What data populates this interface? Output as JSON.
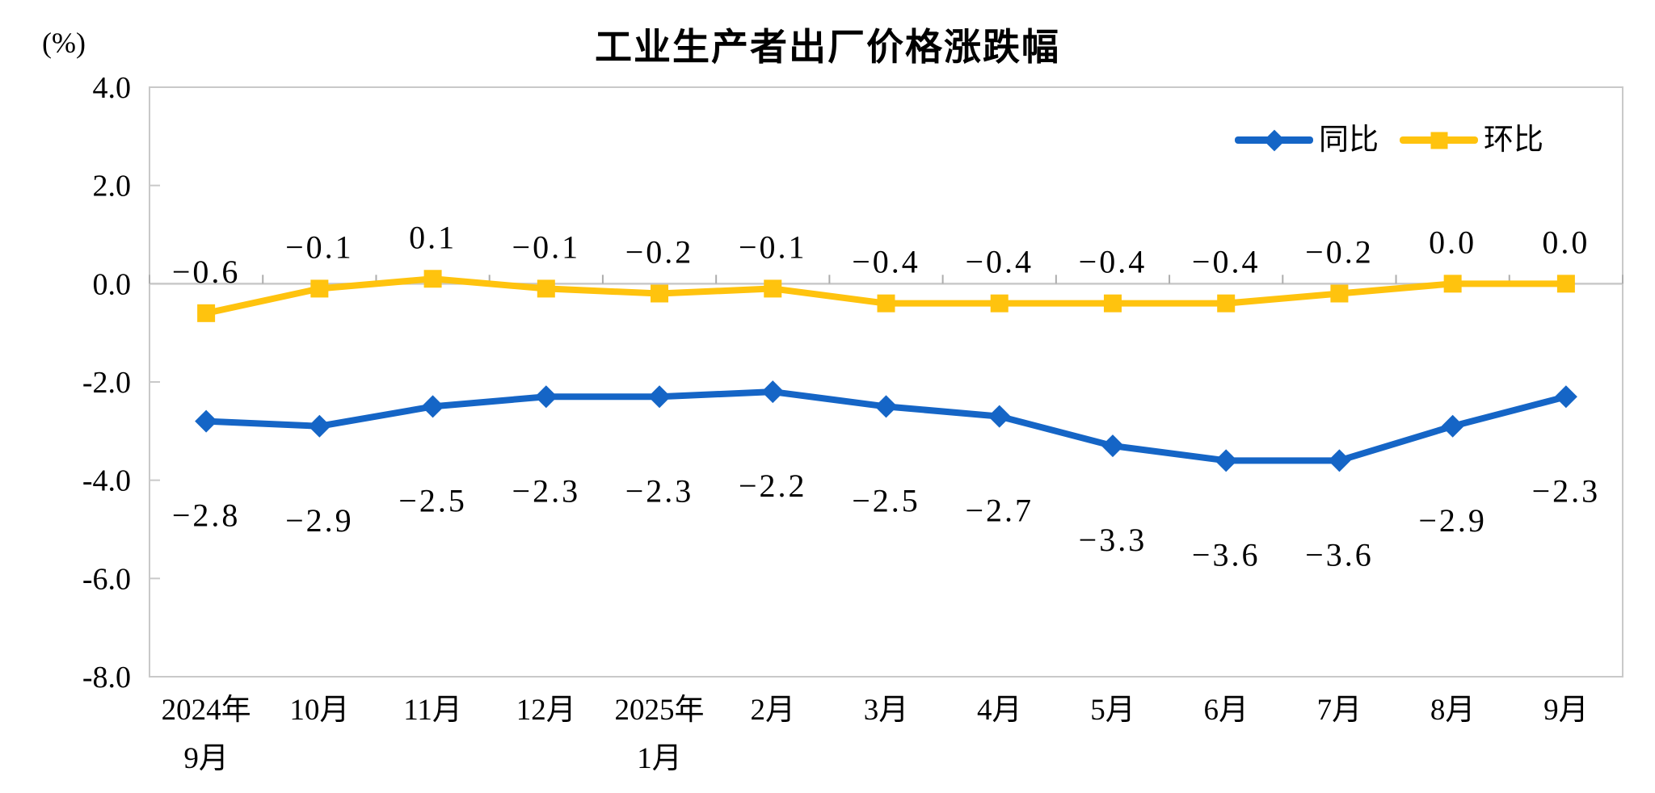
{
  "title": "工业生产者出厂价格涨跌幅",
  "unit_label": "(%)",
  "legend": {
    "items": [
      {
        "key": "yoy",
        "label": "同比",
        "marker": "diamond",
        "color": "#1565C6"
      },
      {
        "key": "mom",
        "label": "环比",
        "marker": "square",
        "color": "#FFC30E"
      }
    ]
  },
  "chart_data": {
    "type": "line",
    "title": "工业生产者出厂价格涨跌幅",
    "ylabel": "(%)",
    "categories": [
      [
        "2024年",
        "9月"
      ],
      [
        "10月"
      ],
      [
        "11月"
      ],
      [
        "12月"
      ],
      [
        "2025年",
        "1月"
      ],
      [
        "2月"
      ],
      [
        "3月"
      ],
      [
        "4月"
      ],
      [
        "5月"
      ],
      [
        "6月"
      ],
      [
        "7月"
      ],
      [
        "8月"
      ],
      [
        "9月"
      ]
    ],
    "series": [
      {
        "key": "yoy",
        "name": "同比",
        "color": "#1565C6",
        "marker": "diamond",
        "label_position": "below",
        "values": [
          -2.8,
          -2.9,
          -2.5,
          -2.3,
          -2.3,
          -2.2,
          -2.5,
          -2.7,
          -3.3,
          -3.6,
          -3.6,
          -2.9,
          -2.3
        ],
        "labels": [
          "−2.8",
          "−2.9",
          "−2.5",
          "−2.3",
          "−2.3",
          "−2.2",
          "−2.5",
          "−2.7",
          "−3.3",
          "−3.6",
          "−3.6",
          "−2.9",
          "−2.3"
        ]
      },
      {
        "key": "mom",
        "name": "环比",
        "color": "#FFC30E",
        "marker": "square",
        "label_position": "above",
        "values": [
          -0.6,
          -0.1,
          0.1,
          -0.1,
          -0.2,
          -0.1,
          -0.4,
          -0.4,
          -0.4,
          -0.4,
          -0.2,
          0.0,
          0.0
        ],
        "labels": [
          "−0.6",
          "−0.1",
          "0.1",
          "−0.1",
          "−0.2",
          "−0.1",
          "−0.4",
          "−0.4",
          "−0.4",
          "−0.4",
          "−0.2",
          "0.0",
          "0.0"
        ]
      }
    ],
    "y_axis": {
      "min": -8.0,
      "max": 4.0,
      "tick_step": 2.0,
      "ticks": [
        4.0,
        2.0,
        0.0,
        -2.0,
        -4.0,
        -6.0,
        -8.0
      ],
      "tick_labels": [
        "4.0",
        "2.0",
        "0.0",
        "-2.0",
        "-4.0",
        "-6.0",
        "-8.0"
      ]
    },
    "grid": false,
    "legend_position": "top-right",
    "axis_color": "#C9C9C9",
    "tick_color": "#ADADAD",
    "text_color": "#000000"
  }
}
